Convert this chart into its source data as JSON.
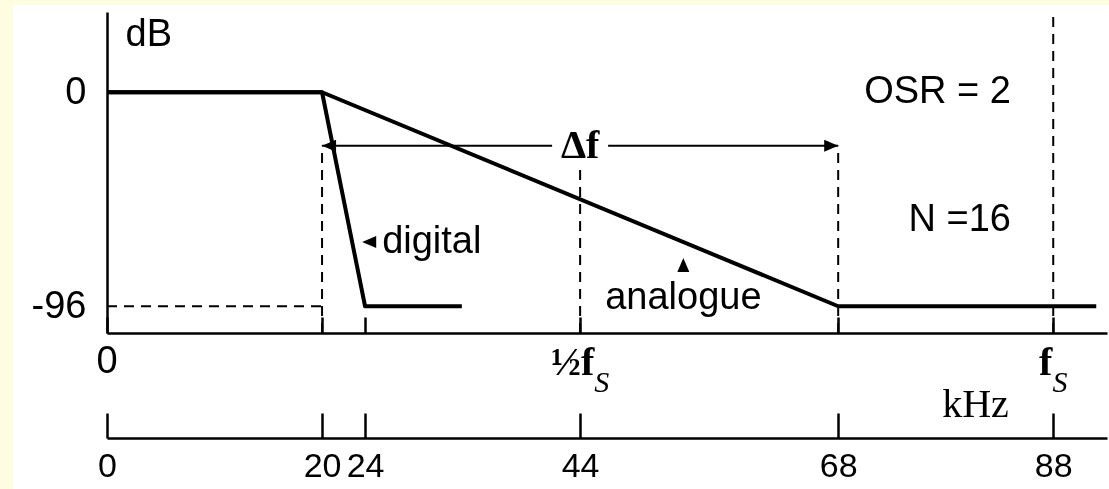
{
  "chart_data": {
    "type": "line",
    "xlabel": "kHz",
    "ylabel": "dB",
    "series": [
      {
        "name": "digital",
        "color": "#000000",
        "x": [
          0,
          20,
          24,
          33
        ],
        "values": [
          0,
          0,
          -96,
          -96
        ]
      },
      {
        "name": "analogue",
        "color": "#000000",
        "x": [
          0,
          20,
          68,
          92
        ],
        "values": [
          0,
          0,
          -96,
          -96
        ]
      }
    ],
    "xlim": [
      0,
      93
    ],
    "xticks": [
      0,
      20,
      24,
      44,
      68,
      88
    ],
    "ylim": [
      -108,
      36
    ],
    "yticks": [
      0,
      -96
    ],
    "ref_lines": [
      {
        "axis": "x",
        "value": 20,
        "line_style": "dashed"
      },
      {
        "axis": "x",
        "value": 44,
        "line_style": "dashed",
        "label": "½f$_{S}$"
      },
      {
        "axis": "x",
        "value": 68,
        "line_style": "dashed"
      },
      {
        "axis": "x",
        "value": 88,
        "line_style": "dashed",
        "label": "f$_{S}$"
      },
      {
        "axis": "y",
        "value": -96,
        "line_style": "dashed"
      }
    ],
    "annotations": [
      "OSR = 2",
      {
        "text": "Δf",
        "x": 20,
        "y": -24
      },
      "N =16",
      "0"
    ]
  }
}
